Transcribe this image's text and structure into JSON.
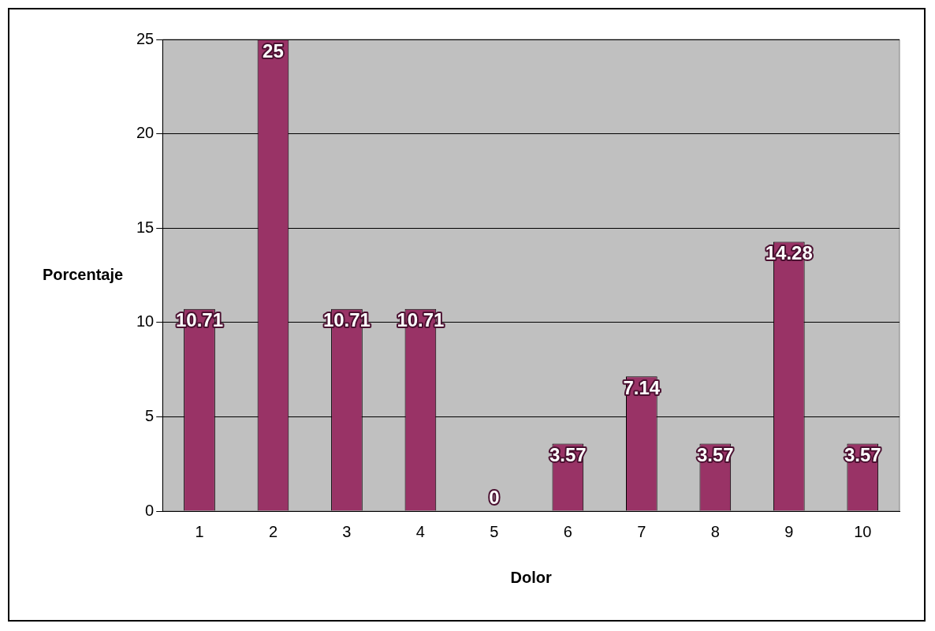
{
  "chart_data": {
    "type": "bar",
    "xlabel": "Dolor",
    "ylabel": "Porcentaje",
    "categories": [
      "1",
      "2",
      "3",
      "4",
      "5",
      "6",
      "7",
      "8",
      "9",
      "10"
    ],
    "values": [
      10.71,
      25,
      10.71,
      10.71,
      0,
      3.57,
      7.14,
      3.57,
      14.28,
      3.57
    ],
    "color": "#993366",
    "ylim": [
      0,
      25
    ],
    "yticks": [
      0,
      5,
      10,
      15,
      20,
      25
    ],
    "grid": "y",
    "data_labels": true,
    "legend": false
  }
}
